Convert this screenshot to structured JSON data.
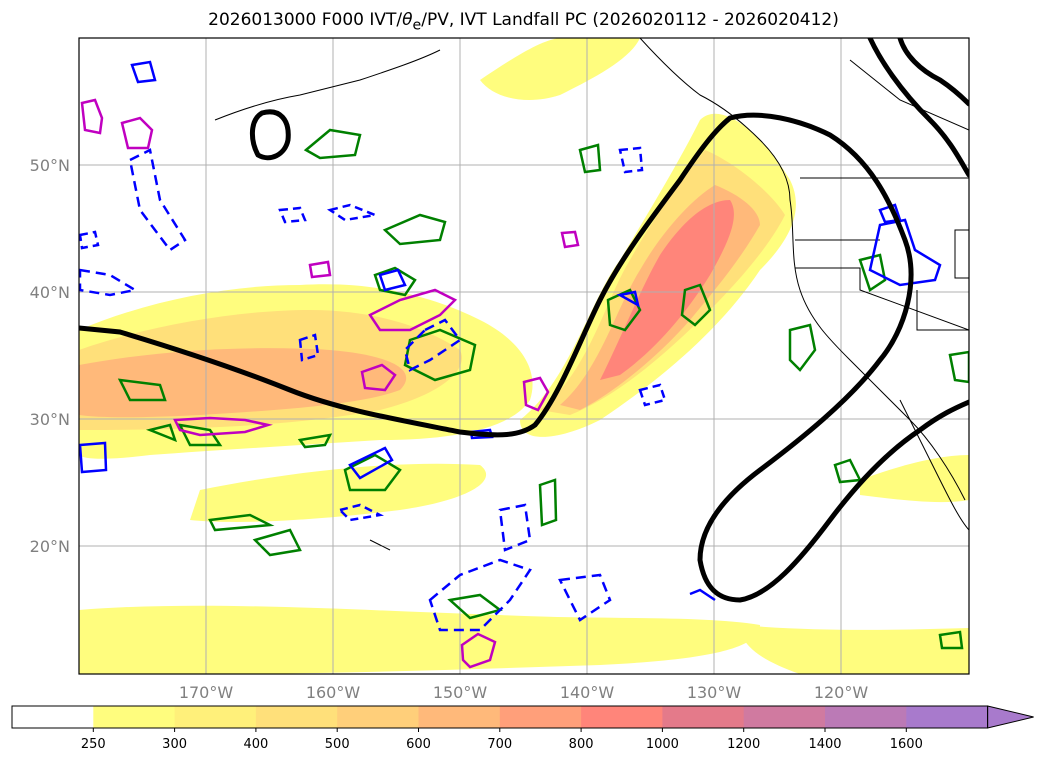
{
  "title": {
    "prefix": "2026013000 F000 IVT/",
    "theta": "θ",
    "theta_sub": "e",
    "suffix": "/PV, IVT Landfall PC (2026020112 - 2026020412)"
  },
  "map": {
    "lat_labels": [
      "50°N",
      "40°N",
      "30°N",
      "20°N"
    ],
    "lat_values": [
      50,
      40,
      30,
      20
    ],
    "lon_labels": [
      "170°W",
      "160°W",
      "150°W",
      "140°W",
      "130°W",
      "120°W"
    ],
    "lon_values": [
      -170,
      -160,
      -150,
      -140,
      -130,
      -120
    ],
    "extent": {
      "lon": [
        -180,
        -110
      ],
      "lat": [
        10,
        60
      ]
    },
    "gridlines": true
  },
  "colorbar": {
    "levels": [
      "250",
      "300",
      "400",
      "500",
      "600",
      "700",
      "800",
      "1000",
      "1200",
      "1400",
      "1600"
    ],
    "colors": [
      "#ffffff",
      "#fffd7e",
      "#fff07a",
      "#ffe07a",
      "#ffcf7a",
      "#ffb97a",
      "#ff9f7a",
      "#ff857a",
      "#e47a8a",
      "#d07aa0",
      "#bb7ab6",
      "#a87acc"
    ],
    "extend": "max"
  },
  "colors": {
    "ivt_contour": "#000000",
    "pv_positive": "#008000",
    "pv_negative": "#0000ff",
    "theta_e": "#c000c0",
    "coast": "#000000"
  }
}
